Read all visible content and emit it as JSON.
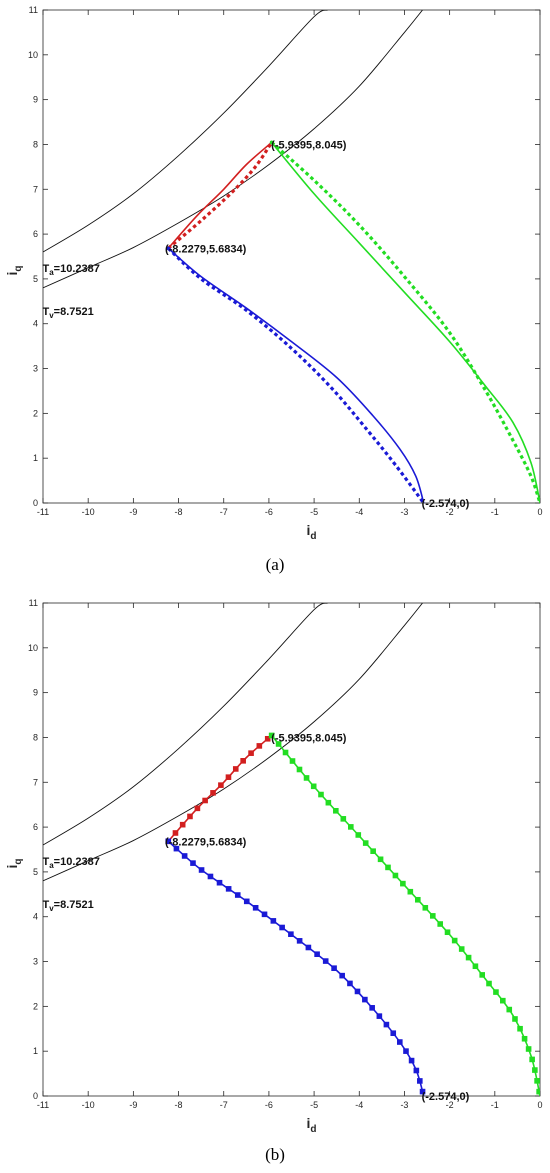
{
  "chart_data": [
    {
      "panel_label": "a",
      "type": "line",
      "xlabel": "i",
      "xlabel_sub": "d",
      "ylabel": "i",
      "ylabel_sub": "q",
      "xlim": [
        -11,
        0
      ],
      "ylim": [
        0,
        11
      ],
      "xticks": [
        -11,
        -10,
        -9,
        -8,
        -7,
        -6,
        -5,
        -4,
        -3,
        -2,
        -1,
        0
      ],
      "yticks": [
        0,
        1,
        2,
        3,
        4,
        5,
        6,
        7,
        8,
        9,
        10,
        11
      ],
      "grid": false,
      "curves": [
        {
          "label_main": "T",
          "label_sub": "a",
          "label_value": "=10.2387",
          "label_at": [
            -11.1,
            5.15
          ],
          "points": [
            [
              -11,
              5.6
            ],
            [
              -10,
              6.2
            ],
            [
              -9,
              6.9
            ],
            [
              -8,
              7.75
            ],
            [
              -7,
              8.7
            ],
            [
              -6,
              9.75
            ],
            [
              -5,
              10.85
            ],
            [
              -4.7,
              11
            ]
          ]
        },
        {
          "label_main": "T",
          "label_sub": "v",
          "label_value": "=8.7521",
          "label_at": [
            -11.1,
            4.2
          ],
          "points": [
            [
              -11,
              4.8
            ],
            [
              -10,
              5.25
            ],
            [
              -9,
              5.7
            ],
            [
              -8,
              6.25
            ],
            [
              -7,
              6.85
            ],
            [
              -6,
              7.55
            ],
            [
              -5,
              8.35
            ],
            [
              -4,
              9.3
            ],
            [
              -3,
              10.5
            ],
            [
              -2.6,
              11
            ]
          ]
        }
      ],
      "annotations": [
        {
          "text": "(-5.9395,8.045)",
          "at": [
            -5.95,
            8.0
          ]
        },
        {
          "text": "(-8.2279,5.6834)",
          "at": [
            -8.3,
            5.68
          ]
        },
        {
          "text": "(-2.574,0)",
          "at": [
            -2.62,
            0
          ]
        }
      ],
      "series": [
        {
          "color": "#d21f1f",
          "style": "solid",
          "points": [
            [
              -8.2279,
              5.6834
            ],
            [
              -7.6,
              6.4
            ],
            [
              -7.0,
              7.0
            ],
            [
              -6.5,
              7.55
            ],
            [
              -5.9395,
              8.045
            ]
          ]
        },
        {
          "color": "#d21f1f",
          "style": "dotted",
          "points": [
            [
              -8.2279,
              5.6834
            ],
            [
              -7.5,
              6.3
            ],
            [
              -6.8,
              6.95
            ],
            [
              -6.3,
              7.5
            ],
            [
              -5.9395,
              8.045
            ]
          ]
        },
        {
          "color": "#1a1ad6",
          "style": "solid",
          "points": [
            [
              -8.2279,
              5.6834
            ],
            [
              -7.5,
              5.05
            ],
            [
              -6.5,
              4.35
            ],
            [
              -5.5,
              3.6
            ],
            [
              -4.5,
              2.8
            ],
            [
              -3.7,
              1.95
            ],
            [
              -3.1,
              1.2
            ],
            [
              -2.75,
              0.6
            ],
            [
              -2.574,
              0
            ]
          ]
        },
        {
          "color": "#1a1ad6",
          "style": "dotted",
          "points": [
            [
              -8.2279,
              5.6834
            ],
            [
              -7.5,
              5.0
            ],
            [
              -6.5,
              4.3
            ],
            [
              -5.5,
              3.45
            ],
            [
              -4.6,
              2.55
            ],
            [
              -3.8,
              1.6
            ],
            [
              -3.2,
              0.85
            ],
            [
              -2.574,
              0
            ]
          ]
        },
        {
          "color": "#22dd22",
          "style": "solid",
          "points": [
            [
              -5.9395,
              8.045
            ],
            [
              -5.0,
              6.9
            ],
            [
              -4.0,
              5.8
            ],
            [
              -3.0,
              4.7
            ],
            [
              -2.0,
              3.6
            ],
            [
              -1.2,
              2.6
            ],
            [
              -0.6,
              1.8
            ],
            [
              -0.2,
              0.9
            ],
            [
              0,
              0
            ]
          ]
        },
        {
          "color": "#22dd22",
          "style": "dotted",
          "points": [
            [
              -5.9395,
              8.045
            ],
            [
              -5.0,
              7.2
            ],
            [
              -4.0,
              6.2
            ],
            [
              -3.0,
              5.05
            ],
            [
              -2.0,
              3.8
            ],
            [
              -1.2,
              2.5
            ],
            [
              -0.6,
              1.4
            ],
            [
              -0.2,
              0.6
            ],
            [
              0,
              0
            ]
          ]
        }
      ]
    },
    {
      "panel_label": "b",
      "type": "line",
      "xlabel": "i",
      "xlabel_sub": "d",
      "ylabel": "i",
      "ylabel_sub": "q",
      "xlim": [
        -11,
        0
      ],
      "ylim": [
        0,
        11
      ],
      "xticks": [
        -11,
        -10,
        -9,
        -8,
        -7,
        -6,
        -5,
        -4,
        -3,
        -2,
        -1,
        0
      ],
      "yticks": [
        0,
        1,
        2,
        3,
        4,
        5,
        6,
        7,
        8,
        9,
        10,
        11
      ],
      "grid": false,
      "curves": [
        {
          "label_main": "T",
          "label_sub": "a",
          "label_value": "=10.2387",
          "label_at": [
            -11.1,
            5.15
          ],
          "points": [
            [
              -11,
              5.6
            ],
            [
              -10,
              6.2
            ],
            [
              -9,
              6.9
            ],
            [
              -8,
              7.75
            ],
            [
              -7,
              8.7
            ],
            [
              -6,
              9.75
            ],
            [
              -5,
              10.85
            ],
            [
              -4.7,
              11
            ]
          ]
        },
        {
          "label_main": "T",
          "label_sub": "v",
          "label_value": "=8.7521",
          "label_at": [
            -11.1,
            4.2
          ],
          "points": [
            [
              -11,
              4.8
            ],
            [
              -10,
              5.25
            ],
            [
              -9,
              5.7
            ],
            [
              -8,
              6.25
            ],
            [
              -7,
              6.85
            ],
            [
              -6,
              7.55
            ],
            [
              -5,
              8.35
            ],
            [
              -4,
              9.3
            ],
            [
              -3,
              10.5
            ],
            [
              -2.6,
              11
            ]
          ]
        }
      ],
      "annotations": [
        {
          "text": "(-5.9395,8.045)",
          "at": [
            -5.95,
            8.0
          ]
        },
        {
          "text": "(-8.2279,5.6834)",
          "at": [
            -8.3,
            5.68
          ]
        },
        {
          "text": "(-2.574,0)",
          "at": [
            -2.62,
            0
          ]
        }
      ],
      "series": [
        {
          "color": "#d21f1f",
          "style": "solid",
          "points": [
            [
              -8.2279,
              5.6834
            ],
            [
              -7.6,
              6.4
            ],
            [
              -7.0,
              7.0
            ],
            [
              -6.5,
              7.55
            ],
            [
              -5.9395,
              8.045
            ]
          ]
        },
        {
          "color": "#d21f1f",
          "style": "markers",
          "points": [
            [
              -8.2279,
              5.6834
            ],
            [
              -7.6,
              6.4
            ],
            [
              -7.0,
              7.0
            ],
            [
              -6.5,
              7.55
            ],
            [
              -5.9395,
              8.045
            ]
          ]
        },
        {
          "color": "#1a1ad6",
          "style": "solid",
          "points": [
            [
              -8.2279,
              5.6834
            ],
            [
              -7.5,
              5.05
            ],
            [
              -6.5,
              4.35
            ],
            [
              -5.5,
              3.6
            ],
            [
              -4.5,
              2.8
            ],
            [
              -3.7,
              1.95
            ],
            [
              -3.1,
              1.2
            ],
            [
              -2.75,
              0.6
            ],
            [
              -2.574,
              0
            ]
          ]
        },
        {
          "color": "#1a1ad6",
          "style": "markers",
          "points": [
            [
              -8.2279,
              5.6834
            ],
            [
              -7.5,
              5.05
            ],
            [
              -6.5,
              4.35
            ],
            [
              -5.5,
              3.6
            ],
            [
              -4.5,
              2.8
            ],
            [
              -3.7,
              1.95
            ],
            [
              -3.1,
              1.2
            ],
            [
              -2.75,
              0.6
            ],
            [
              -2.574,
              0
            ]
          ]
        },
        {
          "color": "#22dd22",
          "style": "solid",
          "points": [
            [
              -5.9395,
              8.045
            ],
            [
              -5.0,
              6.9
            ],
            [
              -4.0,
              5.8
            ],
            [
              -3.0,
              4.7
            ],
            [
              -2.0,
              3.6
            ],
            [
              -1.2,
              2.6
            ],
            [
              -0.6,
              1.8
            ],
            [
              -0.2,
              0.9
            ],
            [
              0,
              0
            ]
          ]
        },
        {
          "color": "#22dd22",
          "style": "markers",
          "points": [
            [
              -5.9395,
              8.045
            ],
            [
              -5.0,
              6.9
            ],
            [
              -4.0,
              5.8
            ],
            [
              -3.0,
              4.7
            ],
            [
              -2.0,
              3.6
            ],
            [
              -1.2,
              2.6
            ],
            [
              -0.6,
              1.8
            ],
            [
              -0.2,
              0.9
            ],
            [
              0,
              0
            ]
          ]
        }
      ]
    }
  ],
  "captions": {
    "a": "(a)",
    "b": "(b)"
  }
}
